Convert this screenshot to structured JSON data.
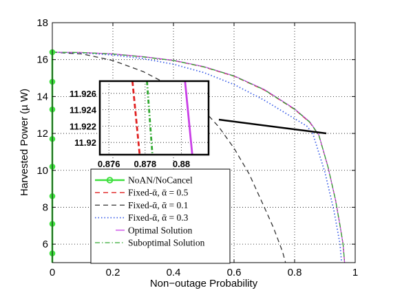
{
  "chart_data": {
    "type": "line",
    "xlabel": "Non−outage Probability",
    "ylabel": "Harvested Power (µ W)",
    "xlim": [
      0,
      1
    ],
    "ylim": [
      5,
      18
    ],
    "xticks": [
      "0",
      "0.2",
      "0.4",
      "0.6",
      "0.8",
      "1"
    ],
    "yticks": [
      "6",
      "8",
      "10",
      "12",
      "14",
      "16",
      "18"
    ],
    "grid": true,
    "legend_position": "bottom-left",
    "series": [
      {
        "name": "NoAN/NoCancel",
        "color": "#3ee03e",
        "style": "solid-circle-markers",
        "x": [
          0,
          0,
          0,
          0,
          0,
          0,
          0,
          0,
          0,
          0
        ],
        "y": [
          5,
          5.5,
          7.1,
          8.6,
          10.2,
          11.7,
          13.3,
          14.8,
          16.4,
          16.4
        ]
      },
      {
        "name": "Fixed-ᾱ, ᾱ = 0.5",
        "color": "#e02020",
        "style": "dashed",
        "x": [
          0,
          0.1,
          0.2,
          0.3,
          0.4,
          0.5,
          0.6,
          0.7,
          0.8,
          0.85,
          0.88,
          0.91,
          0.935,
          0.95,
          0.96,
          0.965
        ],
        "y": [
          16.4,
          16.38,
          16.3,
          16.15,
          15.95,
          15.6,
          15.1,
          14.35,
          13.3,
          12.6,
          11.9,
          10.2,
          8.4,
          7.0,
          6.0,
          5.0
        ]
      },
      {
        "name": "Fixed-ᾱ, ᾱ = 0.1",
        "color": "#333333",
        "style": "dashed",
        "x": [
          0,
          0.1,
          0.2,
          0.3,
          0.4,
          0.5,
          0.55,
          0.6,
          0.65,
          0.7,
          0.73,
          0.76,
          0.77
        ],
        "y": [
          16.4,
          16.3,
          15.95,
          15.35,
          14.5,
          13.25,
          12.35,
          11.2,
          9.8,
          8.0,
          6.9,
          5.6,
          5.0
        ]
      },
      {
        "name": "Fixed-ᾱ, ᾱ = 0.3",
        "color": "#3a5ee8",
        "style": "dotted",
        "x": [
          0,
          0.1,
          0.2,
          0.3,
          0.4,
          0.5,
          0.6,
          0.7,
          0.75,
          0.8,
          0.84,
          0.86,
          0.9,
          0.93,
          0.95,
          0.955
        ],
        "y": [
          16.4,
          16.36,
          16.25,
          16.05,
          15.75,
          15.3,
          14.65,
          13.8,
          13.3,
          12.8,
          12.4,
          12.0,
          9.9,
          7.8,
          6.0,
          5.0
        ]
      },
      {
        "name": "Optimal Solution",
        "color": "#c93fe6",
        "style": "solid",
        "x": [
          0,
          0.1,
          0.2,
          0.3,
          0.4,
          0.5,
          0.6,
          0.7,
          0.8,
          0.85,
          0.88,
          0.91,
          0.935,
          0.95,
          0.96,
          0.965
        ],
        "y": [
          16.4,
          16.38,
          16.31,
          16.16,
          15.96,
          15.62,
          15.12,
          14.38,
          13.33,
          12.63,
          11.92,
          10.2,
          8.4,
          7.0,
          6.0,
          5.0
        ]
      },
      {
        "name": "Suboptimal Solution",
        "color": "#2fa82f",
        "style": "dashdot",
        "x": [
          0,
          0.1,
          0.2,
          0.3,
          0.4,
          0.5,
          0.6,
          0.7,
          0.8,
          0.85,
          0.88,
          0.91,
          0.935,
          0.95,
          0.96,
          0.965
        ],
        "y": [
          16.4,
          16.38,
          16.3,
          16.15,
          15.95,
          15.61,
          15.11,
          14.36,
          13.31,
          12.61,
          11.91,
          10.2,
          8.4,
          7.0,
          6.0,
          5.0
        ]
      }
    ],
    "inset": {
      "xlim": [
        0.8755,
        0.8815
      ],
      "ylim": [
        11.9185,
        11.9275
      ],
      "xticks": [
        "0.876",
        "0.878",
        "0.88"
      ],
      "yticks": [
        "11.92",
        "11.922",
        "11.924",
        "11.926"
      ],
      "series": [
        {
          "ref": "Fixed-ᾱ, ᾱ = 0.5",
          "x": [
            0.8773,
            0.8777
          ],
          "y": [
            11.9275,
            11.9185
          ]
        },
        {
          "ref": "Suboptimal Solution",
          "x": [
            0.8781,
            0.8784
          ],
          "y": [
            11.9275,
            11.9185
          ]
        },
        {
          "ref": "Optimal Solution",
          "x": [
            0.8802,
            0.8806
          ],
          "y": [
            11.9275,
            11.9185
          ]
        }
      ]
    }
  }
}
